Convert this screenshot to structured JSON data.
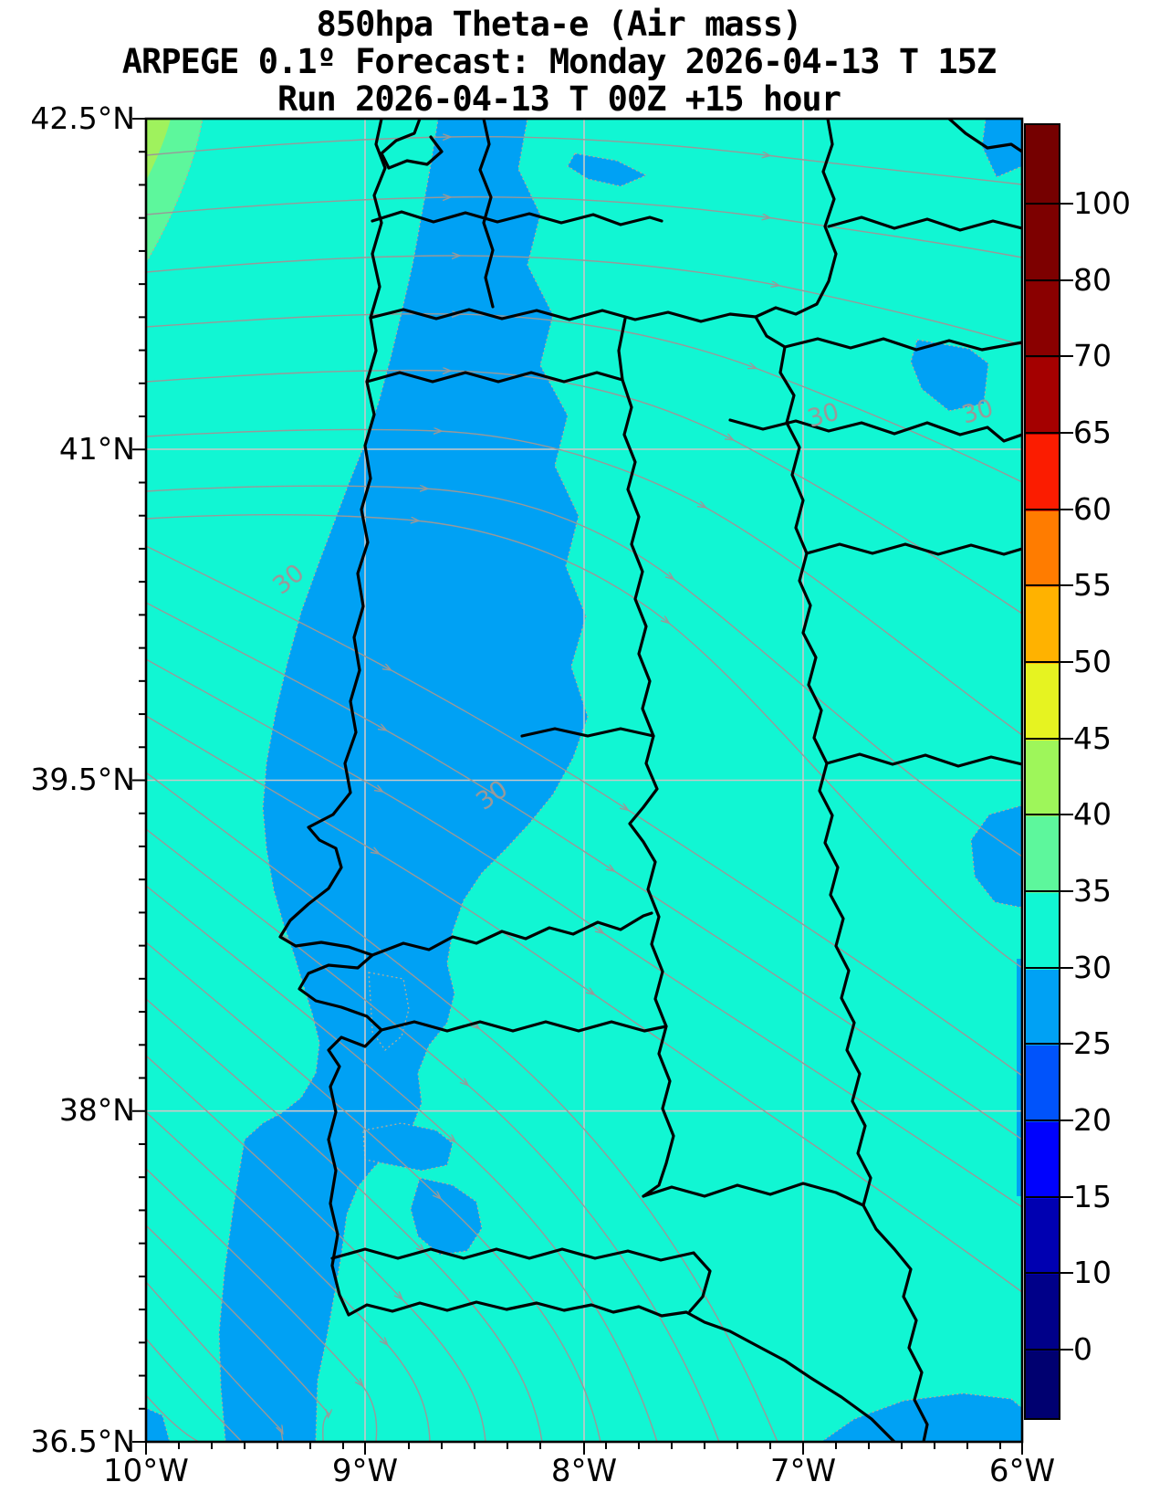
{
  "title": {
    "line1": "850hpa Theta-e (Air mass)",
    "line2": "ARPEGE 0.1º Forecast: Monday 2026-04-13 T 15Z",
    "line3": "Run 2026-04-13 T 00Z +15 hour"
  },
  "axes": {
    "lat_labels": [
      "42.5°N",
      "41°N",
      "39.5°N",
      "38°N",
      "36.5°N"
    ],
    "lon_labels": [
      "10°W",
      "9°W",
      "8°W",
      "7°W",
      "6°W"
    ]
  },
  "colorbar": {
    "tick_labels": [
      "100",
      "80",
      "70",
      "65",
      "60",
      "55",
      "50",
      "45",
      "40",
      "35",
      "30",
      "25",
      "20",
      "15",
      "10",
      "0"
    ],
    "segment_colors_top_to_bottom": [
      "#750000",
      "#7d0000",
      "#8a0000",
      "#a40000",
      "#fb1c00",
      "#ff7c00",
      "#ffb200",
      "#e6f321",
      "#9ef65a",
      "#5df79c",
      "#11f6d3",
      "#00a1f4",
      "#0053fb",
      "#0002fd",
      "#0000b1",
      "#000089",
      "#000070"
    ]
  },
  "map": {
    "contour_label": "30",
    "background_color": "#11f6d3",
    "band_color": "#00a1f4",
    "green_color": "#5df79c",
    "streamline_color": "#999999",
    "grid_color": "#c8c8c8",
    "boundary_color": "#000000"
  },
  "chart_data": {
    "type": "heatmap",
    "title": "850hpa Theta-e (Air mass)",
    "subtitle": "ARPEGE 0.1º Forecast: Monday 2026-04-13 T 15Z",
    "run_info": "Run 2026-04-13 T 00Z +15 hour",
    "x_axis": {
      "ticks": [
        "10°W",
        "9°W",
        "8°W",
        "7°W",
        "6°W"
      ],
      "range_deg_lon": [
        -10,
        -6
      ]
    },
    "y_axis": {
      "ticks": [
        "42.5°N",
        "41°N",
        "39.5°N",
        "38°N",
        "36.5°N"
      ],
      "range_deg_lat": [
        36.5,
        42.5
      ]
    },
    "colorbar": {
      "boundaries_low_to_high": [
        0,
        10,
        15,
        20,
        25,
        30,
        35,
        40,
        45,
        50,
        55,
        60,
        65,
        70,
        80,
        100
      ],
      "colors_low_to_high": [
        "#000070",
        "#000089",
        "#0000b1",
        "#0002fd",
        "#0053fb",
        "#00a1f4",
        "#11f6d3",
        "#5df79c",
        "#9ef65a",
        "#e6f321",
        "#ffb200",
        "#ff7c00",
        "#fb1c00",
        "#a40000",
        "#8a0000",
        "#7d0000",
        "#750000"
      ],
      "extend": "both"
    },
    "filled_contours_visible": [
      {
        "range": "30-35",
        "color": "#11f6d3",
        "coverage": "most of the domain (ocean and inland Iberia)"
      },
      {
        "range": "25-30",
        "color": "#00a1f4",
        "coverage": "band along/off the west Portuguese coast from the top edge to Lisbon, southern band reaching the bottom edge, patches at top-right corner, east-center, right edge near 39.5N and Gulf of Cadiz at bottom"
      },
      {
        "range": "35-40",
        "color": "#5df79c",
        "coverage": "small wedge in the northwest (top-left) corner"
      }
    ],
    "contour_line_labels": [
      {
        "value": 30,
        "approx_lon": -6.9,
        "approx_lat": 41.2
      },
      {
        "value": 30,
        "approx_lon": -6.2,
        "approx_lat": 41.2
      },
      {
        "value": 30,
        "approx_lon": -9.3,
        "approx_lat": 40.4
      },
      {
        "value": 30,
        "approx_lon": -8.4,
        "approx_lat": 39.4
      }
    ],
    "streamlines": {
      "color": "#999999",
      "pattern": "westerly flow across the north turning to northwest-to-southeast flow over the central and southern part of the domain"
    }
  }
}
